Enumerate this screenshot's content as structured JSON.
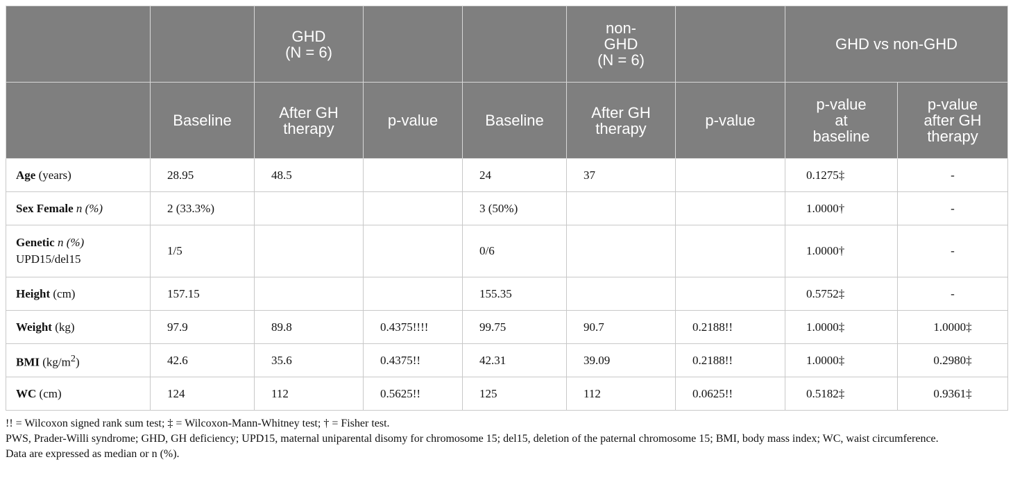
{
  "table": {
    "header_rows": [
      [
        null,
        null,
        [
          "GHD",
          "(N = 6)"
        ],
        null,
        null,
        [
          "non-",
          "GHD",
          "(N = 6)"
        ],
        null,
        [
          "GHD vs non-GHD"
        ]
      ],
      [
        null,
        [
          "Baseline"
        ],
        [
          "After GH",
          "therapy"
        ],
        [
          "p-value"
        ],
        [
          "Baseline"
        ],
        [
          "After GH",
          "therapy"
        ],
        [
          "p-value"
        ],
        [
          "p-value",
          "at",
          "baseline"
        ],
        [
          "p-value",
          "after GH",
          "therapy"
        ]
      ]
    ],
    "rows": [
      {
        "label": [
          {
            "bold": "Age"
          },
          {
            "normal": " (years)"
          }
        ],
        "cells": [
          "28.95",
          "48.5",
          null,
          "24",
          "37",
          null,
          "0.1275‡",
          "-"
        ]
      },
      {
        "label": [
          {
            "bold": "Sex Female"
          },
          {
            "italic": " n (%)"
          }
        ],
        "cells": [
          "2 (33.3%)",
          null,
          null,
          "3 (50%)",
          null,
          null,
          "1.0000†",
          "-"
        ]
      },
      {
        "label": [
          {
            "bold": "Genetic"
          },
          {
            "italic": " n (%)"
          },
          {
            "line": "UPD15/del15"
          }
        ],
        "cells": [
          "1/5",
          null,
          null,
          "0/6",
          null,
          null,
          "1.0000†",
          "-"
        ]
      },
      {
        "label": [
          {
            "bold": "Height"
          },
          {
            "normal": " (cm)"
          }
        ],
        "cells": [
          "157.15",
          null,
          null,
          "155.35",
          null,
          null,
          "0.5752‡",
          "-"
        ]
      },
      {
        "label": [
          {
            "bold": "Weight"
          },
          {
            "normal": " (kg)"
          }
        ],
        "cells": [
          "97.9",
          "89.8",
          "0.4375!!!!",
          "99.75",
          "90.7",
          "0.2188!!",
          "1.0000‡",
          "1.0000‡"
        ]
      },
      {
        "label": [
          {
            "bold": "BMI"
          },
          {
            "normal": " (kg/m"
          },
          {
            "sup": "2"
          },
          {
            "normal": ")"
          }
        ],
        "cells": [
          "42.6",
          "35.6",
          "0.4375!!",
          "42.31",
          "39.09",
          "0.2188!!",
          "1.0000‡",
          "0.2980‡"
        ]
      },
      {
        "label": [
          {
            "bold": "WC"
          },
          {
            "normal": " (cm)"
          }
        ],
        "cells": [
          "124",
          "112",
          "0.5625!!",
          "125",
          "112",
          "0.0625!!",
          "0.5182‡",
          "0.9361‡"
        ]
      }
    ],
    "footnotes": [
      "!! = Wilcoxon signed rank sum test; ‡ = Wilcoxon-Mann-Whitney test; † = Fisher test.",
      "PWS, Prader-Willi syndrome; GHD, GH deficiency; UPD15, maternal uniparental disomy for chromosome 15; del15, deletion of the paternal chromosome 15; BMI, body mass index; WC, waist circumference.",
      "Data are expressed as median or n (%)."
    ]
  }
}
